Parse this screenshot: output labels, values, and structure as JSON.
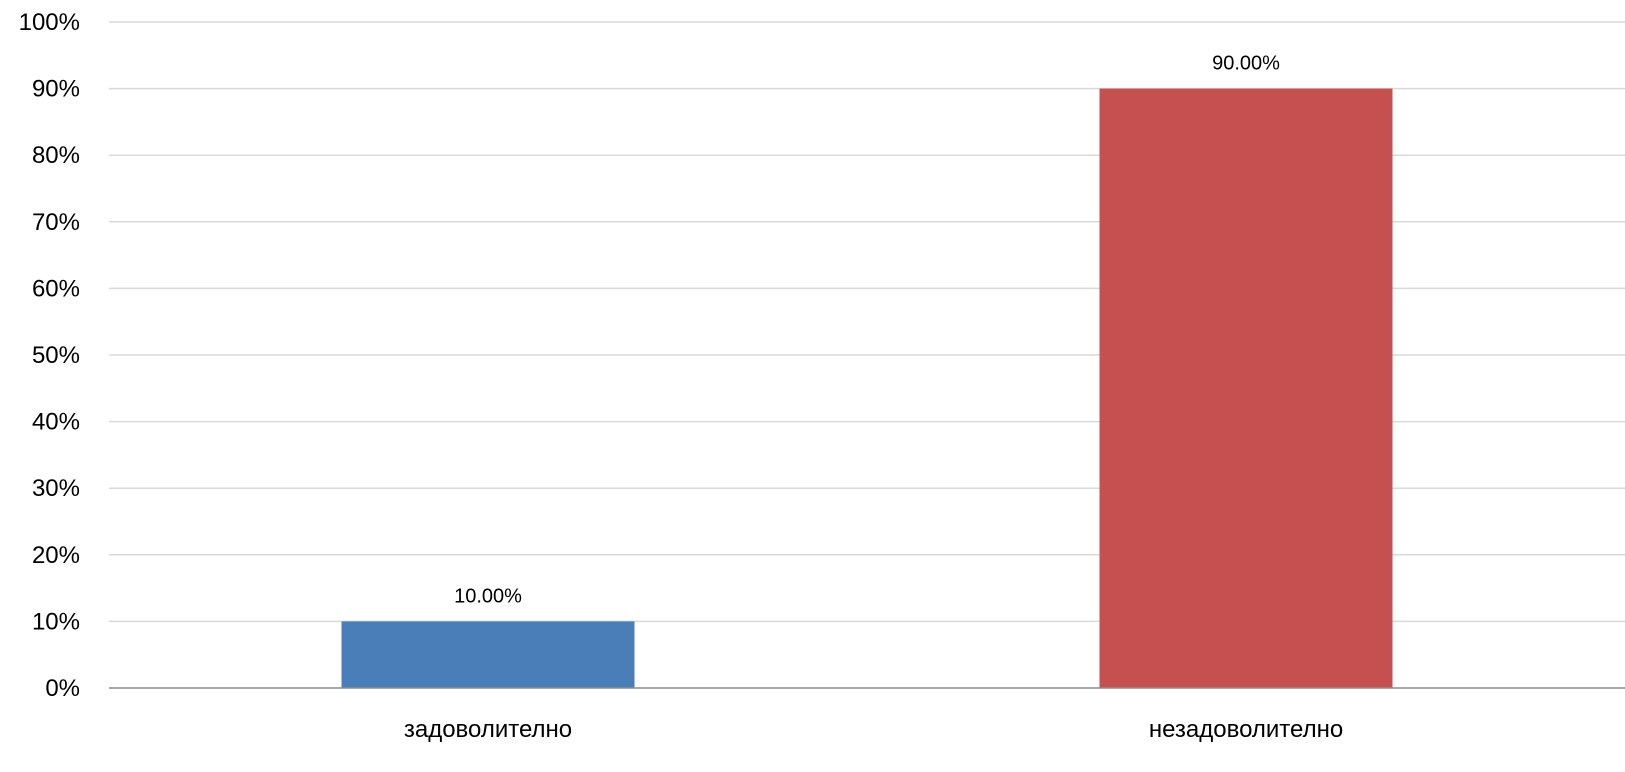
{
  "chart_data": {
    "type": "bar",
    "title": "",
    "xlabel": "",
    "ylabel": "",
    "categories": [
      "задоволително",
      "незадоволително"
    ],
    "values": [
      10,
      90
    ],
    "data_labels": [
      "10.00%",
      "90.00%"
    ],
    "colors": [
      "#4a7eb8",
      "#c5504f"
    ],
    "ylim": [
      0,
      100
    ],
    "yticks": [
      0,
      10,
      20,
      30,
      40,
      50,
      60,
      70,
      80,
      90,
      100
    ],
    "ytick_labels": [
      "0%",
      "10%",
      "20%",
      "30%",
      "40%",
      "50%",
      "60%",
      "70%",
      "80%",
      "90%",
      "100%"
    ],
    "grid": true,
    "legend": "none"
  }
}
